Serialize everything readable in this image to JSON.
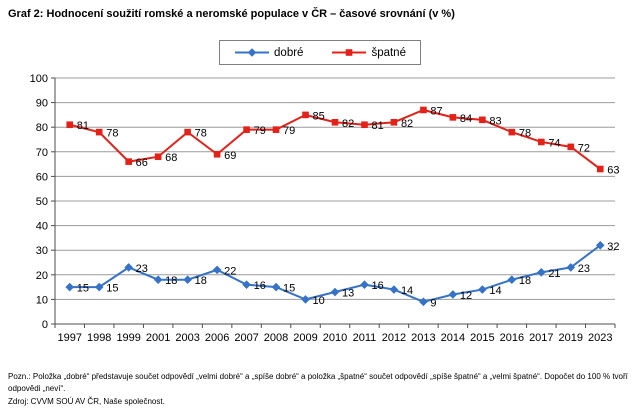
{
  "title": "Graf 2: Hodnocení soužití romské a neromské populace v ČR – časové srovnání (v %)",
  "chart_data": {
    "type": "line",
    "title": "Graf 2: Hodnocení soužití romské a neromské populace v ČR – časové srovnání (v %)",
    "categories": [
      "1997",
      "1998",
      "1999",
      "2001",
      "2003",
      "2006",
      "2007",
      "2008",
      "2009",
      "2010",
      "2011",
      "2012",
      "2013",
      "2014",
      "2015",
      "2016",
      "2017",
      "2019",
      "2023"
    ],
    "series": [
      {
        "name": "dobré",
        "marker": "diamond",
        "color": "#3673C8",
        "values": [
          15,
          15,
          23,
          18,
          18,
          22,
          16,
          15,
          10,
          13,
          16,
          14,
          9,
          12,
          14,
          18,
          21,
          23,
          32
        ]
      },
      {
        "name": "špatné",
        "marker": "square",
        "color": "#E32119",
        "values": [
          81,
          78,
          66,
          68,
          78,
          69,
          79,
          79,
          85,
          82,
          81,
          82,
          87,
          84,
          83,
          78,
          74,
          72,
          63
        ]
      }
    ],
    "xlabel": "",
    "ylabel": "",
    "ylim": [
      0,
      100
    ],
    "ytick": 10,
    "grid": "horizontal",
    "legend_position": "top",
    "data_labels": true,
    "gridline_color": "#9C9C9C",
    "axis_color": "#4D4D4D",
    "label_color": "#000000"
  },
  "notes": {
    "note": "Pozn.: Položka „dobré“ představuje součet odpovědí „velmi dobré“ a „spíše dobré“ a položka „špatné“ součet odpovědí „spíše špatné“ a „velmi špatné“. Dopočet do 100 % tvoří odpovědi „neví“.",
    "source": "Zdroj: CVVM SOÚ AV ČR, Naše společnost."
  }
}
